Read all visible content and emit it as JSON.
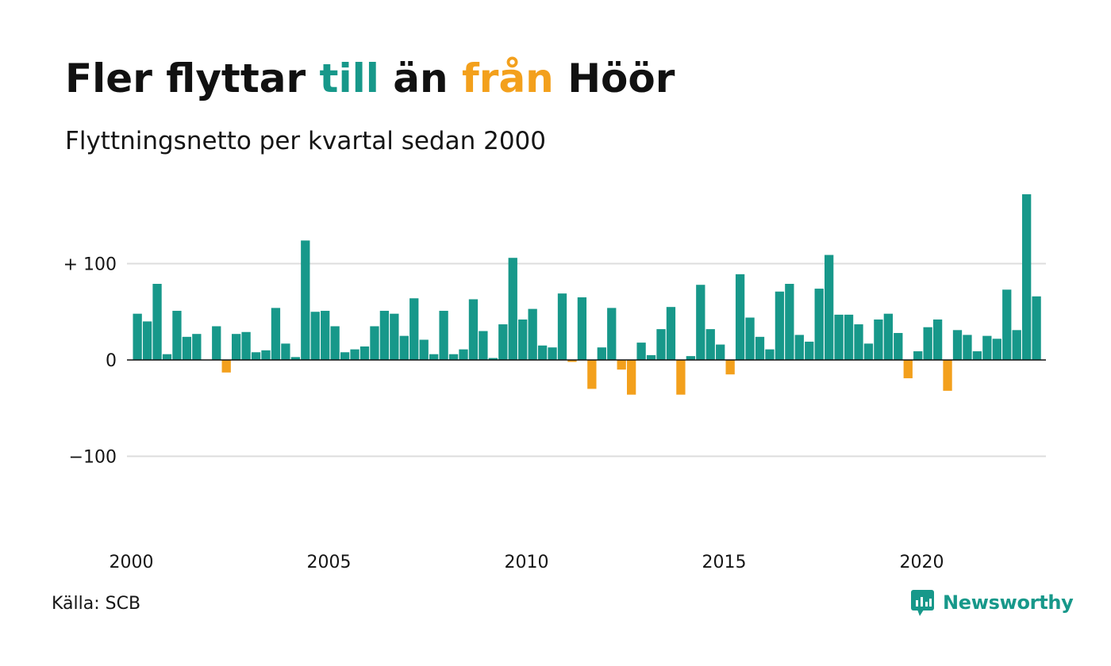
{
  "title": {
    "part1": "Fler flyttar ",
    "part2": "till",
    "part3": " än ",
    "part4": "från",
    "part5": " Höör"
  },
  "subtitle": "Flyttningsnetto per kvartal sedan 2000",
  "source": "Källa: SCB",
  "brand": {
    "name": "Newsworthy",
    "icon": "newsworthy-logo-icon"
  },
  "colors": {
    "positive": "#17988a",
    "negative": "#f3a01c",
    "gridline": "#dddddd",
    "zeroline": "#111111"
  },
  "chart_data": {
    "type": "bar",
    "title": "Fler flyttar till än från Höör",
    "subtitle": "Flyttningsnetto per kvartal sedan 2000",
    "ylim": [
      -190,
      190
    ],
    "yticks": [
      {
        "value": 100,
        "label": "+ 100"
      },
      {
        "value": 0,
        "label": "0"
      },
      {
        "value": -100,
        "label": "−100"
      }
    ],
    "xticks": [
      {
        "label": "2000",
        "index": 0
      },
      {
        "label": "2005",
        "index": 20
      },
      {
        "label": "2010",
        "index": 40
      },
      {
        "label": "2015",
        "index": 60
      },
      {
        "label": "2020",
        "index": 80
      }
    ],
    "grid": true,
    "start_year": 2000,
    "periods_per_year": 4,
    "values": [
      48,
      40,
      79,
      6,
      51,
      24,
      27,
      0,
      35,
      -13,
      27,
      29,
      8,
      10,
      54,
      17,
      3,
      124,
      50,
      51,
      35,
      8,
      11,
      14,
      35,
      51,
      48,
      25,
      64,
      21,
      6,
      51,
      6,
      11,
      63,
      30,
      2,
      37,
      106,
      42,
      53,
      15,
      13,
      69,
      -2,
      65,
      -30,
      13,
      54,
      -10,
      -36,
      18,
      5,
      32,
      55,
      -36,
      4,
      78,
      32,
      16,
      -15,
      89,
      44,
      24,
      11,
      71,
      79,
      26,
      19,
      74,
      109,
      47,
      47,
      37,
      17,
      42,
      48,
      28,
      -19,
      9,
      34,
      42,
      -32,
      31,
      26,
      9,
      25,
      22,
      73,
      31,
      172,
      66
    ]
  }
}
